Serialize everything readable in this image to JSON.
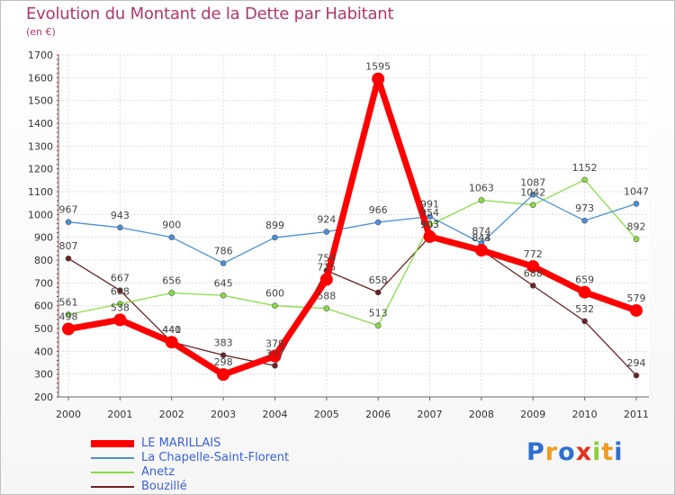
{
  "chart_data": {
    "type": "line",
    "title": "Evolution du Montant de la Dette par Habitant",
    "subtitle": "(en €)",
    "xlabel": "",
    "ylabel": "",
    "x": [
      "2000",
      "2001",
      "2002",
      "2003",
      "2004",
      "2005",
      "2006",
      "2007",
      "2008",
      "2009",
      "2010",
      "2011"
    ],
    "ylim": [
      200,
      1700
    ],
    "yticks": [
      200,
      300,
      400,
      500,
      600,
      700,
      800,
      900,
      1000,
      1100,
      1200,
      1300,
      1400,
      1500,
      1600,
      1700
    ],
    "grid": true,
    "legend_position": "bottom-left",
    "series": [
      {
        "name": "LE MARILLAIS",
        "color": "#ff0000",
        "values": [
          498,
          538,
          440,
          298,
          379,
          715,
          1595,
          903,
          843,
          772,
          659,
          579
        ]
      },
      {
        "name": "La Chapelle-Saint-Florent",
        "color": "#4a90d9",
        "values": [
          967,
          943,
          900,
          786,
          899,
          924,
          966,
          991,
          874,
          1087,
          973,
          1047
        ]
      },
      {
        "name": "Anetz",
        "color": "#88dd44",
        "values": [
          561,
          608,
          656,
          645,
          600,
          588,
          513,
          954,
          1063,
          1042,
          1152,
          892
        ]
      },
      {
        "name": "Bouzillé",
        "color": "#6b2222",
        "values": [
          807,
          667,
          441,
          383,
          337,
          754,
          658,
          903,
          844,
          688,
          532,
          294
        ]
      }
    ]
  },
  "brand": {
    "letters": [
      "P",
      "r",
      "o",
      "x",
      "i",
      "t",
      "i"
    ],
    "colors": [
      "#2f6fd1",
      "#f29b1e",
      "#2f6fd1",
      "#e2321f",
      "#8ccf3a",
      "#f29b1e",
      "#2f6fd1"
    ]
  }
}
